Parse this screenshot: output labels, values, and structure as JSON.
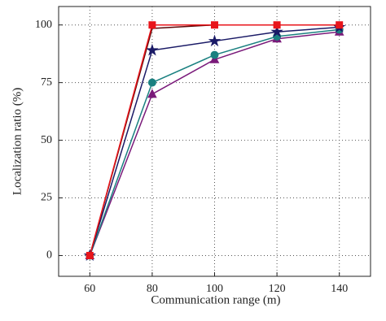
{
  "chart_data": {
    "type": "line",
    "x_label": "Communication range (m)",
    "y_label": "Localization ratio (%)",
    "x": [
      60,
      80,
      100,
      120,
      140
    ],
    "xlim": [
      50,
      150
    ],
    "xticks": [
      60,
      80,
      100,
      120,
      140
    ],
    "ylim": [
      -9,
      108
    ],
    "yticks": [
      0,
      25,
      50,
      75,
      100
    ],
    "grid": true,
    "series": [
      {
        "color": "#e8151b",
        "marker": "square",
        "values": [
          0,
          100,
          100,
          100,
          100
        ]
      },
      {
        "color": "#5a0a0a",
        "marker": "none",
        "values": [
          0,
          98.5,
          100,
          100,
          100
        ]
      },
      {
        "color": "#1a1a66",
        "marker": "star",
        "values": [
          0,
          89,
          93,
          97,
          99
        ]
      },
      {
        "color": "#1a8080",
        "marker": "circle",
        "values": [
          0,
          75,
          87,
          95,
          98
        ]
      },
      {
        "color": "#7a1a7a",
        "marker": "triangle",
        "values": [
          0,
          70,
          85,
          94,
          97
        ]
      }
    ]
  }
}
